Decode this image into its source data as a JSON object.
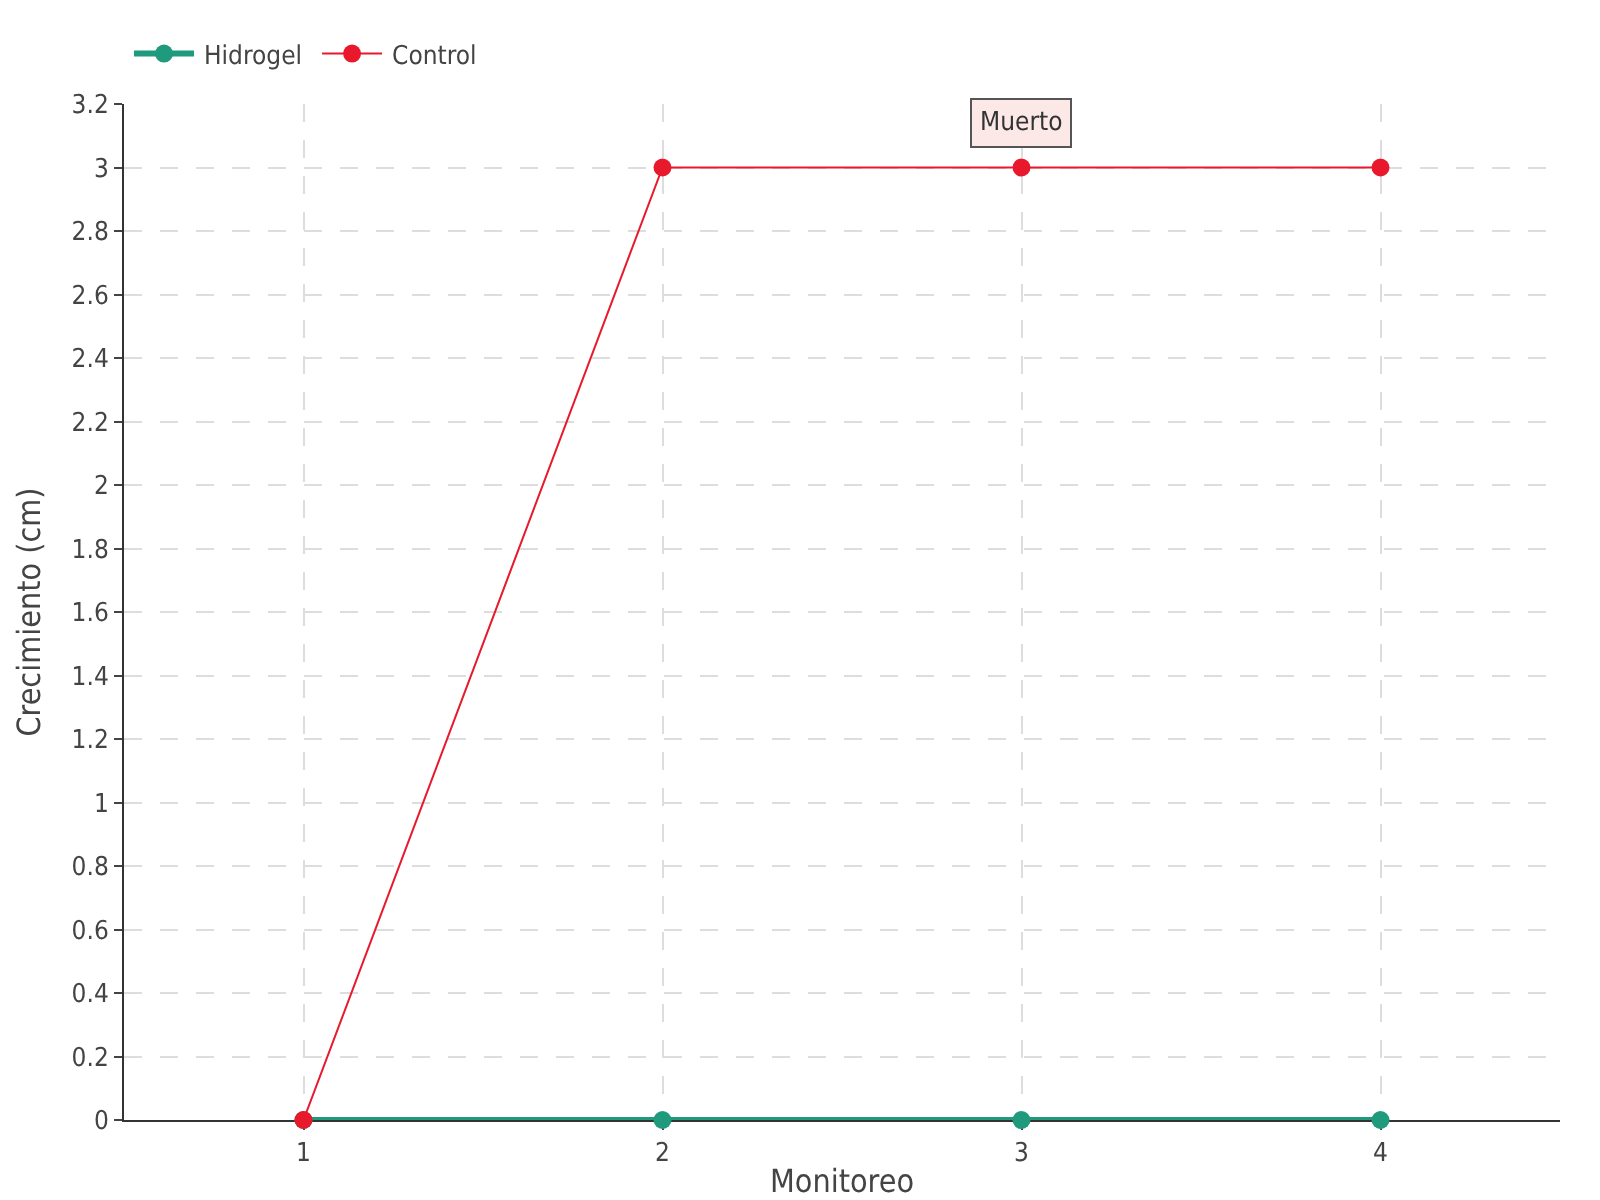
{
  "chart_data": {
    "type": "line",
    "xlabel": "Monitoreo",
    "ylabel": "Crecimiento (cm)",
    "categories": [
      "1",
      "2",
      "3",
      "4"
    ],
    "series": [
      {
        "name": "Hidrogel",
        "color": "#1f9a7c",
        "values": [
          0,
          0,
          0,
          0
        ]
      },
      {
        "name": "Control",
        "color": "#e8192c",
        "values": [
          0,
          3,
          3,
          3
        ]
      }
    ],
    "ylim": [
      0,
      3.2
    ],
    "yticks": [
      0,
      0.2,
      0.4,
      0.6,
      0.8,
      1,
      1.2,
      1.4,
      1.6,
      1.8,
      2,
      2.2,
      2.4,
      2.6,
      2.8,
      3,
      3.2
    ],
    "annotations": [
      {
        "text": "Muerto",
        "x": "3",
        "y": 3
      }
    ],
    "grid": true,
    "legend": "top left",
    "marker": "circle",
    "line_style": "solid"
  }
}
